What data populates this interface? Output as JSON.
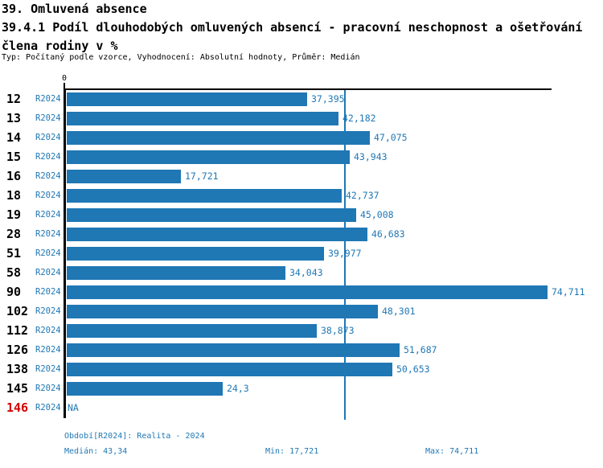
{
  "header": {
    "title": "39. Omluvená absence",
    "subtitle_line1": "39.4.1 Podíl dlouhodobých omluvených absencí - pracovní neschopnost a ošetřování",
    "subtitle_line2": "člena rodiny v %",
    "meta": "Typ: Počítaný podle vzorce, Vyhodnocení: Absolutní hodnoty, Průměr: Medián"
  },
  "chart_data": {
    "type": "bar",
    "orientation": "horizontal",
    "title": "39.4.1 Podíl dlouhodobých omluvených absencí - pracovní neschopnost a ošetřování člena rodiny v %",
    "series_label": "R2024",
    "categories": [
      "12",
      "13",
      "14",
      "15",
      "16",
      "18",
      "19",
      "28",
      "51",
      "58",
      "90",
      "102",
      "112",
      "126",
      "138",
      "145",
      "146"
    ],
    "values": [
      37.395,
      42.182,
      47.075,
      43.943,
      17.721,
      42.737,
      45.008,
      46.683,
      39.977,
      34.043,
      74.711,
      48.301,
      38.873,
      51.687,
      50.653,
      24.3,
      null
    ],
    "value_labels": [
      "37,395",
      "42,182",
      "47,075",
      "43,943",
      "17,721",
      "42,737",
      "45,008",
      "46,683",
      "39,977",
      "34,043",
      "74,711",
      "48,301",
      "38,873",
      "51,687",
      "50,653",
      "24,3",
      "NA"
    ],
    "na_text": "NA",
    "xlim": [
      0,
      75.6
    ],
    "median": 43.34,
    "axis_tick_label": "0",
    "bar_color": "#1f77b4",
    "label_color": "#1f77b4",
    "median_line_color": "#1f77b4",
    "highlight_index": 16,
    "highlight_color": "#d60000",
    "grid": false,
    "legend_position": "none"
  },
  "footer": {
    "period": "Období[R2024]: Realita - 2024",
    "median": "Medián: 43,34",
    "min": "Min: 17,721",
    "max": "Max: 74,711"
  }
}
